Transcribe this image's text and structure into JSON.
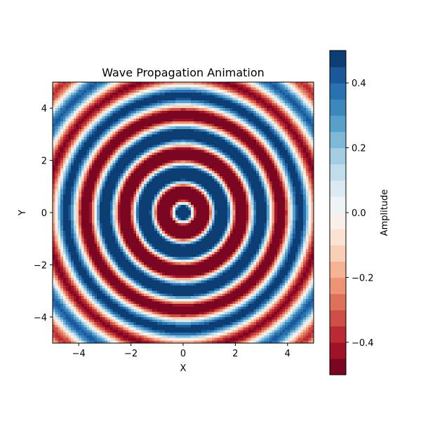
{
  "chart_data": {
    "type": "heatmap",
    "title": "Wave Propagation Animation",
    "xlabel": "X",
    "ylabel": "Y",
    "xlim": [
      -5,
      5
    ],
    "ylim": [
      -5,
      5
    ],
    "grid": false,
    "x_ticks": [
      -4,
      -2,
      0,
      2,
      4
    ],
    "y_ticks": [
      -4,
      -2,
      0,
      2,
      4
    ],
    "x_tick_labels": [
      "−4",
      "−2",
      "0",
      "2",
      "4"
    ],
    "y_tick_labels": [
      "−4",
      "−2",
      "0",
      "2",
      "4"
    ],
    "resolution": 100,
    "field": {
      "formula": "sin(k*r) * exp(-decay*r)",
      "k": 4.2,
      "phase": 1.5708,
      "decay": 0.15,
      "clip": 0.5
    },
    "colormap": "RdBu",
    "colorbar": {
      "label": "Amplitude",
      "vmin": -0.5,
      "vmax": 0.5,
      "ticks": [
        -0.4,
        -0.2,
        0.0,
        0.2,
        0.4
      ],
      "tick_labels": [
        "−0.4",
        "−0.2",
        "0.0",
        "0.2",
        "0.4"
      ],
      "levels": 20
    }
  }
}
